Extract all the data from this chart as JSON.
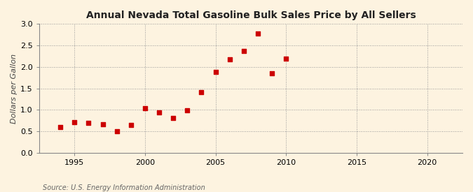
{
  "title": "Annual Nevada Total Gasoline Bulk Sales Price by All Sellers",
  "ylabel": "Dollars per Gallon",
  "source": "Source: U.S. Energy Information Administration",
  "background_color": "#fdf3e0",
  "plot_bg_color": "#fdf3e0",
  "marker_color": "#cc0000",
  "years": [
    1994,
    1995,
    1996,
    1997,
    1998,
    1999,
    2000,
    2001,
    2002,
    2003,
    2004,
    2005,
    2006,
    2007,
    2008,
    2009,
    2010
  ],
  "values": [
    0.6,
    0.72,
    0.7,
    0.66,
    0.5,
    0.65,
    1.04,
    0.94,
    0.82,
    0.99,
    1.41,
    1.88,
    2.18,
    2.37,
    2.77,
    1.85,
    2.19
  ],
  "xlim": [
    1992.5,
    2022.5
  ],
  "ylim": [
    0.0,
    3.0
  ],
  "xticks": [
    1995,
    2000,
    2005,
    2010,
    2015,
    2020
  ],
  "yticks": [
    0.0,
    0.5,
    1.0,
    1.5,
    2.0,
    2.5,
    3.0
  ],
  "grid_color": "#999999",
  "title_fontsize": 10,
  "label_fontsize": 8,
  "tick_fontsize": 8,
  "source_fontsize": 7,
  "marker_size": 18
}
